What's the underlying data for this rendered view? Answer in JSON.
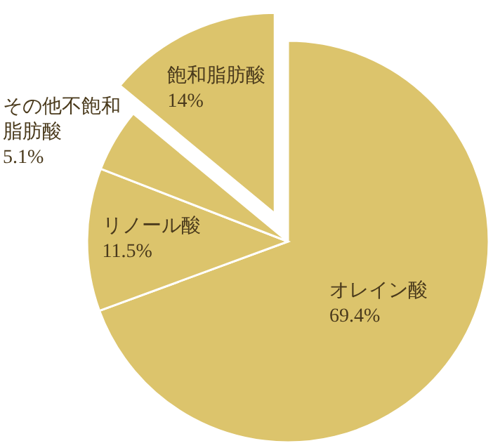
{
  "chart_data": {
    "type": "pie",
    "categories": [
      "オレイン酸",
      "リノール酸",
      "その他不飽和脂肪酸",
      "飽和脂肪酸"
    ],
    "values": [
      69.4,
      11.5,
      5.1,
      14
    ],
    "value_labels": [
      "69.4%",
      "11.5%",
      "5.1%",
      "14%"
    ],
    "colors": [
      "#dcc46c",
      "#dcc46c",
      "#dcc46c",
      "#dcc46c"
    ]
  }
}
